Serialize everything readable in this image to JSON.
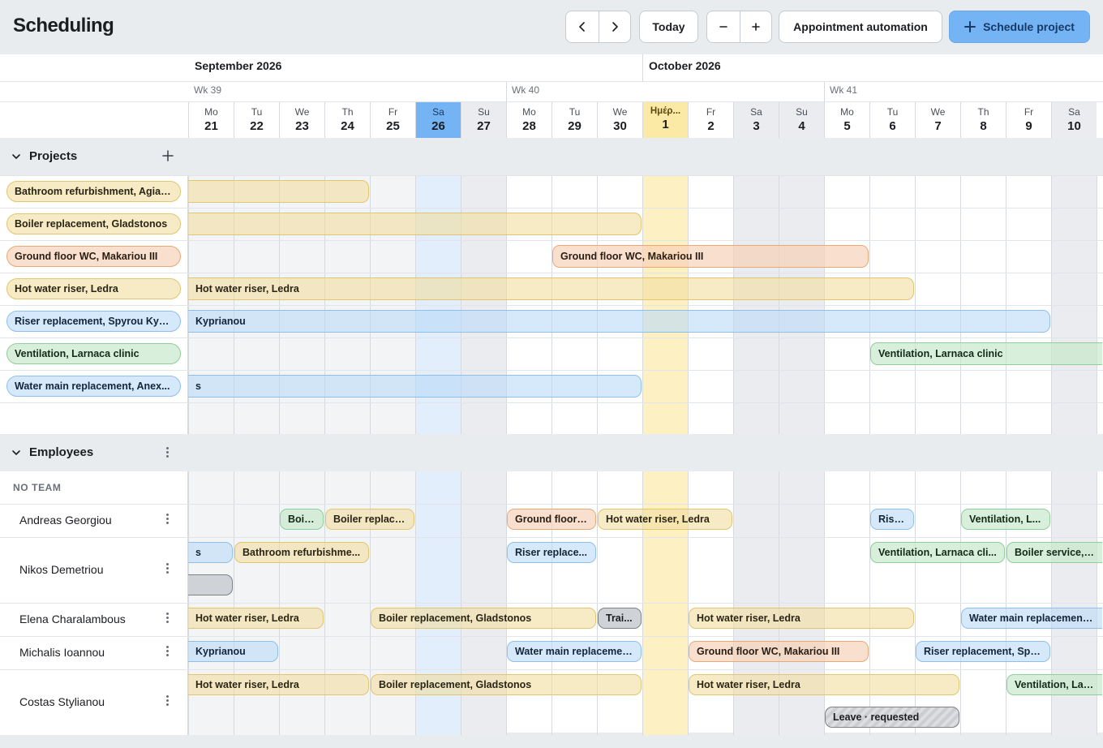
{
  "header": {
    "title": "Scheduling",
    "prev_icon": "chevron-left-icon",
    "next_icon": "chevron-right-icon",
    "today_label": "Today",
    "zoom_out_icon": "minus-icon",
    "zoom_in_icon": "plus-icon",
    "automation_label": "Appointment automation",
    "schedule_label": "Schedule project",
    "schedule_icon": "plus-icon"
  },
  "timeline": {
    "months": [
      {
        "label": "September 2026"
      },
      {
        "label": "October 2026"
      }
    ],
    "weeks": [
      {
        "label": "Wk 39"
      },
      {
        "label": "Wk 40"
      },
      {
        "label": "Wk 41"
      }
    ],
    "days": [
      {
        "name": "Mo",
        "num": "21"
      },
      {
        "name": "Tu",
        "num": "22"
      },
      {
        "name": "We",
        "num": "23"
      },
      {
        "name": "Th",
        "num": "24"
      },
      {
        "name": "Fr",
        "num": "25"
      },
      {
        "name": "Sa",
        "num": "26",
        "selected": true
      },
      {
        "name": "Su",
        "num": "27",
        "weekend": true
      },
      {
        "name": "Mo",
        "num": "28"
      },
      {
        "name": "Tu",
        "num": "29"
      },
      {
        "name": "We",
        "num": "30"
      },
      {
        "name": "Ημέρ...",
        "num": "1",
        "today": true
      },
      {
        "name": "Fr",
        "num": "2"
      },
      {
        "name": "Sa",
        "num": "3",
        "weekend": true
      },
      {
        "name": "Su",
        "num": "4",
        "weekend": true
      },
      {
        "name": "Mo",
        "num": "5"
      },
      {
        "name": "Tu",
        "num": "6"
      },
      {
        "name": "We",
        "num": "7"
      },
      {
        "name": "Th",
        "num": "8"
      },
      {
        "name": "Fr",
        "num": "9"
      },
      {
        "name": "Sa",
        "num": "10",
        "weekend": true
      }
    ]
  },
  "projects": {
    "section_label": "Projects",
    "add_icon": "plus-icon",
    "items": [
      {
        "label": "Bathroom refurbishment, Agias...",
        "color": "y",
        "bar": {
          "label": "",
          "start": 0,
          "end": 4,
          "clip_left": true
        }
      },
      {
        "label": "Boiler replacement, Gladstonos",
        "color": "y",
        "bar": {
          "label": "",
          "start": 0,
          "end": 10,
          "clip_left": true
        }
      },
      {
        "label": "Ground floor WC, Makariou III",
        "color": "o",
        "bar": {
          "label": "Ground floor WC, Makariou III",
          "start": 8,
          "end": 15
        }
      },
      {
        "label": "Hot water riser, Ledra",
        "color": "y",
        "bar": {
          "label": "Hot water riser, Ledra",
          "start": 0,
          "end": 16,
          "clip_left": true
        }
      },
      {
        "label": "Riser replacement, Spyrou Kyp...",
        "color": "b",
        "bar": {
          "label": "Kyprianou",
          "start": 0,
          "end": 19,
          "clip_left": true
        }
      },
      {
        "label": "Ventilation, Larnaca clinic",
        "color": "g",
        "bar": {
          "label": "Ventilation, Larnaca clinic",
          "start": 15,
          "end": 20,
          "clip_right": true
        }
      },
      {
        "label": "Water main replacement, Anex...",
        "color": "b",
        "bar": {
          "label": "s",
          "start": 0,
          "end": 10,
          "clip_left": true
        }
      }
    ]
  },
  "employees": {
    "section_label": "Employees",
    "team_label": "NO TEAM",
    "rows": [
      {
        "name": "Andreas Georgiou",
        "height": 41,
        "bars": [
          {
            "label": "Boil...",
            "c": "g",
            "s": 2,
            "e": 3,
            "l": 0
          },
          {
            "label": "Boiler replace...",
            "c": "y",
            "s": 3,
            "e": 5,
            "l": 0
          },
          {
            "label": "Ground floor ...",
            "c": "o",
            "s": 7,
            "e": 9,
            "l": 0
          },
          {
            "label": "Hot water riser, Ledra",
            "c": "y",
            "s": 9,
            "e": 12,
            "l": 0
          },
          {
            "label": "Rise...",
            "c": "b",
            "s": 15,
            "e": 16,
            "l": 0
          },
          {
            "label": "Ventilation, L...",
            "c": "g",
            "s": 17,
            "e": 19,
            "l": 0
          }
        ]
      },
      {
        "name": "Nikos Demetriou",
        "height": 81,
        "bars": [
          {
            "label": "s",
            "c": "b",
            "s": 0,
            "e": 1,
            "l": 0,
            "cl": true
          },
          {
            "label": "Bathroom refurbishme...",
            "c": "y",
            "s": 1,
            "e": 4,
            "l": 0
          },
          {
            "label": "Riser replace...",
            "c": "b",
            "s": 7,
            "e": 9,
            "l": 0
          },
          {
            "label": "Ventilation, Larnaca cli...",
            "c": "g",
            "s": 15,
            "e": 18,
            "l": 0
          },
          {
            "label": "Boiler service, Germ",
            "c": "g",
            "s": 18,
            "e": 20,
            "l": 0,
            "cr": true
          },
          {
            "label": "",
            "c": "gr",
            "s": 0,
            "e": 1,
            "l": 1,
            "cl": true
          }
        ]
      },
      {
        "name": "Elena Charalambous",
        "height": 41,
        "bars": [
          {
            "label": "Hot water riser, Ledra",
            "c": "y",
            "s": 0,
            "e": 3,
            "l": 0,
            "cl": true
          },
          {
            "label": "Boiler replacement, Gladstonos",
            "c": "y",
            "s": 4,
            "e": 9,
            "l": 0
          },
          {
            "label": "Trai...",
            "c": "gr",
            "s": 9,
            "e": 10,
            "l": 0
          },
          {
            "label": "Hot water riser, Ledra",
            "c": "y",
            "s": 11,
            "e": 16,
            "l": 0
          },
          {
            "label": "Water main replacement, An",
            "c": "b",
            "s": 17,
            "e": 20,
            "l": 0,
            "cr": true
          }
        ]
      },
      {
        "name": "Michalis Ioannou",
        "height": 41,
        "bars": [
          {
            "label": "Kyprianou",
            "c": "b",
            "s": 0,
            "e": 2,
            "l": 0,
            "cl": true
          },
          {
            "label": "Water main replacemen...",
            "c": "b",
            "s": 7,
            "e": 10,
            "l": 0
          },
          {
            "label": "Ground floor WC, Makariou III",
            "c": "o",
            "s": 11,
            "e": 15,
            "l": 0
          },
          {
            "label": "Riser replacement, Spy...",
            "c": "b",
            "s": 16,
            "e": 19,
            "l": 0
          }
        ]
      },
      {
        "name": "Costas Stylianou",
        "height": 81,
        "bars": [
          {
            "label": "Hot water riser, Ledra",
            "c": "y",
            "s": 0,
            "e": 4,
            "l": 0,
            "cl": true
          },
          {
            "label": "Boiler replacement, Gladstonos",
            "c": "y",
            "s": 4,
            "e": 10,
            "l": 0
          },
          {
            "label": "Hot water riser, Ledra",
            "c": "y",
            "s": 11,
            "e": 17,
            "l": 0
          },
          {
            "label": "Ventilation, Larnac",
            "c": "g",
            "s": 18,
            "e": 20,
            "l": 0,
            "cr": true
          },
          {
            "label": "Leave · requested",
            "c": "hatch",
            "s": 14,
            "e": 17,
            "l": 1
          }
        ]
      }
    ]
  }
}
